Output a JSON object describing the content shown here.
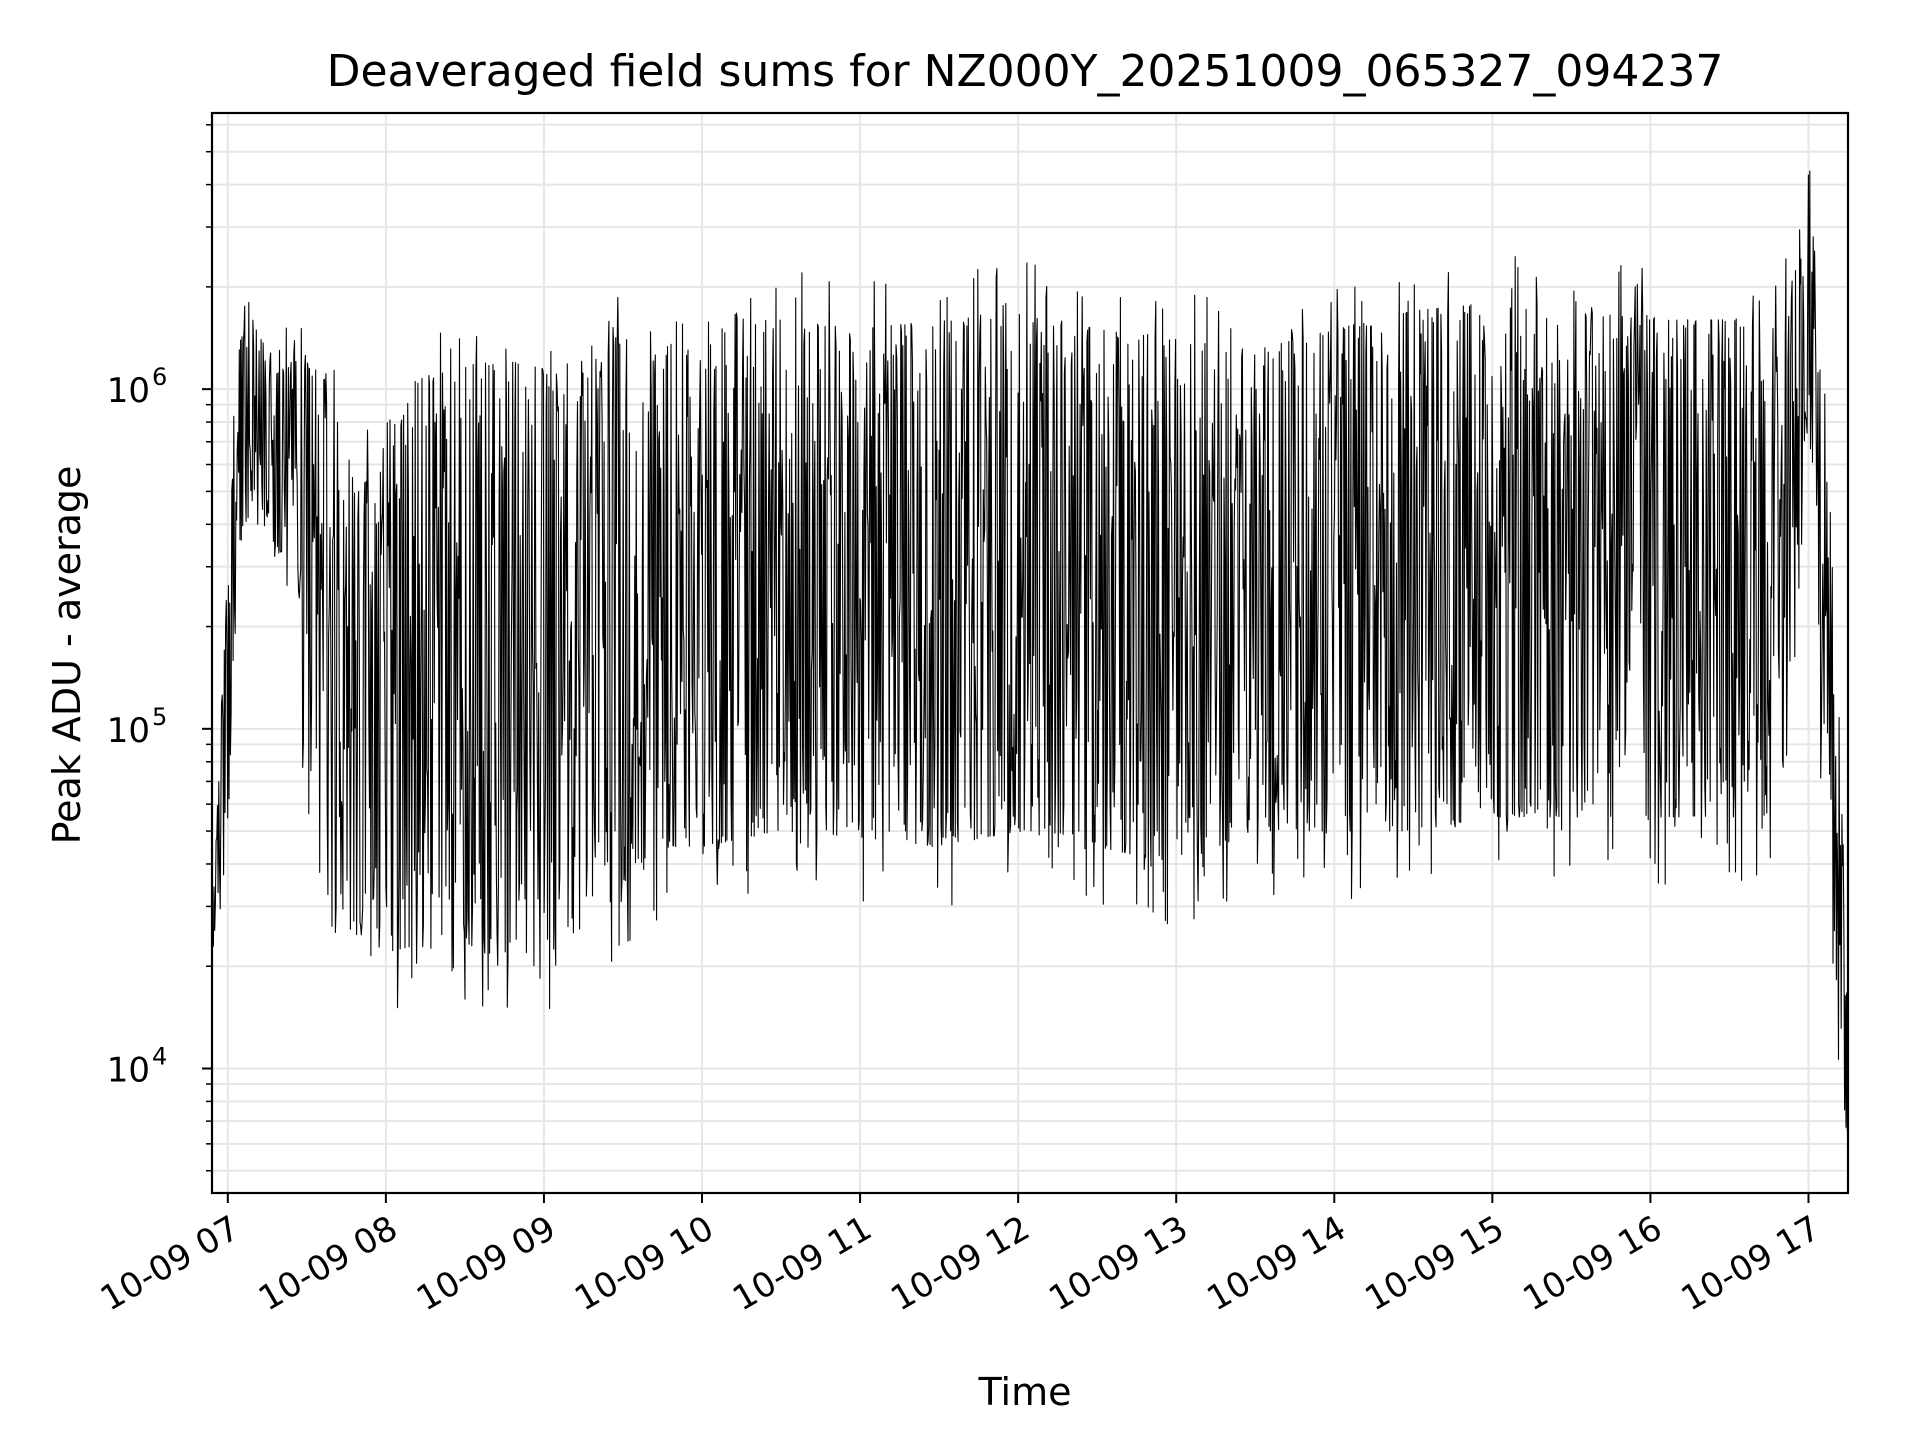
{
  "chart_data": {
    "type": "line",
    "title": "Deaveraged field sums for NZ000Y_20251009_065327_094237",
    "xlabel": "Time",
    "ylabel": "Peak ADU - average",
    "yscale": "log",
    "ylim": [
      4300,
      6500000
    ],
    "xlim_hours": [
      6.9,
      17.25
    ],
    "grid": true,
    "line_color": "#000000",
    "grid_color": "#e6e6e6",
    "x_ticks": [
      {
        "hour": 7,
        "label": "10-09 07"
      },
      {
        "hour": 8,
        "label": "10-09 08"
      },
      {
        "hour": 9,
        "label": "10-09 09"
      },
      {
        "hour": 10,
        "label": "10-09 10"
      },
      {
        "hour": 11,
        "label": "10-09 11"
      },
      {
        "hour": 12,
        "label": "10-09 12"
      },
      {
        "hour": 13,
        "label": "10-09 13"
      },
      {
        "hour": 14,
        "label": "10-09 14"
      },
      {
        "hour": 15,
        "label": "10-09 15"
      },
      {
        "hour": 16,
        "label": "10-09 16"
      },
      {
        "hour": 17,
        "label": "10-09 17"
      }
    ],
    "y_ticks": [
      {
        "value": 10000,
        "base": "10",
        "exp": "4"
      },
      {
        "value": 100000,
        "base": "10",
        "exp": "5"
      },
      {
        "value": 1000000,
        "base": "10",
        "exp": "6"
      }
    ],
    "envelope": {
      "description": "upper/lower envelope of dense deaveraged field-sum series",
      "hours": [
        6.9,
        6.95,
        7.0,
        7.05,
        7.1,
        7.15,
        7.2,
        7.3,
        7.4,
        7.45,
        7.5,
        7.6,
        7.7,
        7.8,
        8.0,
        8.2,
        8.4,
        8.6,
        8.8,
        9.0,
        9.2,
        9.4,
        9.5,
        9.6,
        9.8,
        10.0,
        10.5,
        11.0,
        11.5,
        12.0,
        12.5,
        13.0,
        13.5,
        14.0,
        14.5,
        15.0,
        15.5,
        16.0,
        16.5,
        16.8,
        16.95,
        17.0,
        17.05,
        17.1,
        17.2,
        17.25
      ],
      "upper": [
        25000,
        90000,
        300000,
        1200000,
        1800000,
        2000000,
        1500000,
        1100000,
        1200000,
        1700000,
        1200000,
        1100000,
        1150000,
        500000,
        600000,
        1100000,
        1150000,
        1200000,
        1200000,
        1150000,
        1200000,
        1250000,
        1400000,
        1500000,
        1600000,
        1500000,
        1600000,
        1500000,
        1600000,
        1700000,
        1500000,
        1400000,
        1300000,
        1500000,
        1700000,
        1800000,
        1700000,
        1600000,
        1600000,
        1500000,
        2500000,
        5000000,
        2500000,
        800000,
        100000,
        15000
      ],
      "lower": [
        20000,
        25000,
        40000,
        300000,
        400000,
        500000,
        400000,
        350000,
        300000,
        150000,
        60000,
        35000,
        28000,
        25000,
        22000,
        23000,
        22000,
        22000,
        21000,
        23000,
        25000,
        30000,
        35000,
        40000,
        45000,
        45000,
        50000,
        48000,
        45000,
        50000,
        45000,
        40000,
        50000,
        50000,
        50000,
        55000,
        55000,
        55000,
        55000,
        55000,
        300000,
        900000,
        400000,
        40000,
        14000,
        5000
      ]
    }
  }
}
